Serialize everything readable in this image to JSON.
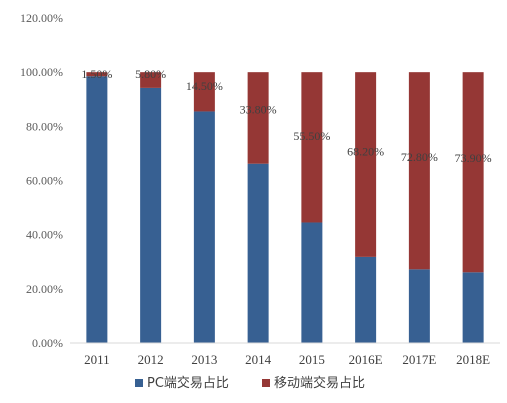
{
  "chart_data": {
    "type": "bar",
    "stacked": true,
    "categories": [
      "2011",
      "2012",
      "2013",
      "2014",
      "2015",
      "2016E",
      "2017E",
      "2018E"
    ],
    "series": [
      {
        "name": "PC端交易占比",
        "color": "#376092",
        "values": [
          98.5,
          94.2,
          85.5,
          66.2,
          44.5,
          31.8,
          27.2,
          26.1
        ]
      },
      {
        "name": "移动端交易占比",
        "color": "#953735",
        "values": [
          1.5,
          5.8,
          14.5,
          33.8,
          55.5,
          68.2,
          72.8,
          73.9
        ]
      }
    ],
    "data_labels": [
      "1.50%",
      "5.80%",
      "14.50%",
      "33.80%",
      "55.50%",
      "68.20%",
      "72.80%",
      "73.90%"
    ],
    "y_ticks": [
      "0.00%",
      "20.00%",
      "40.00%",
      "60.00%",
      "80.00%",
      "100.00%",
      "120.00%"
    ],
    "ylim": [
      0,
      120
    ],
    "title": "",
    "xlabel": "",
    "ylabel": "",
    "grid": false,
    "legend_position": "bottom"
  }
}
